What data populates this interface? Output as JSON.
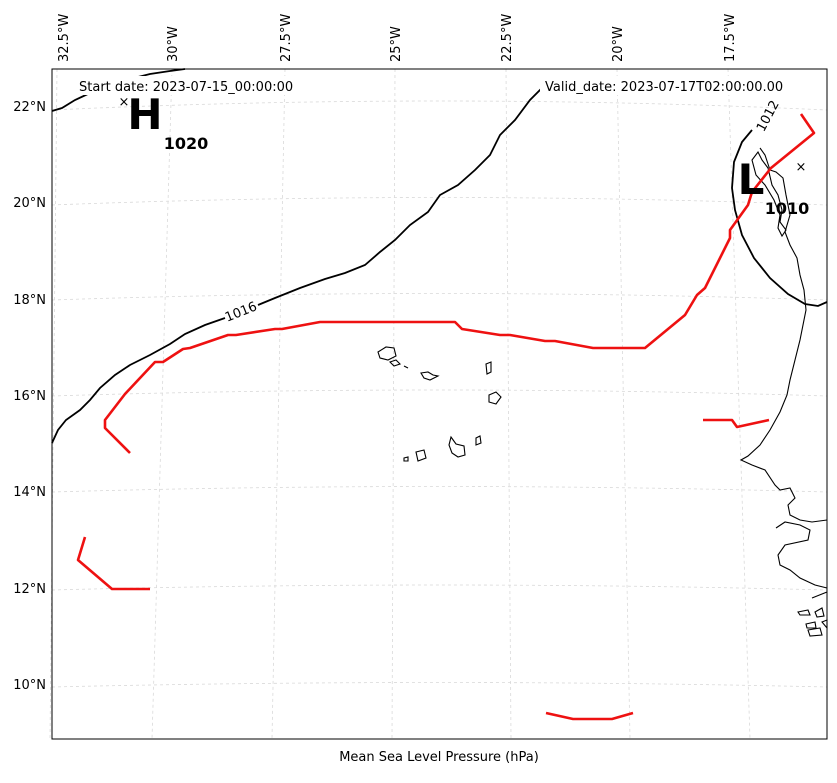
{
  "header": {
    "start_date": "Start date: 2023-07-15_00:00:00",
    "valid_date": "Valid_date: 2023-07-17T02:00:00.00"
  },
  "caption": "Mean Sea Level Pressure (hPa)",
  "longitude_labels": [
    "32.5°W",
    "30°W",
    "27.5°W",
    "25°W",
    "22.5°W",
    "20°W",
    "17.5°W"
  ],
  "latitude_labels": [
    "22°N",
    "20°N",
    "18°N",
    "16°N",
    "14°N",
    "12°N",
    "10°N"
  ],
  "centers": {
    "high": {
      "symbol": "H",
      "value": "1020",
      "marker": "×"
    },
    "low": {
      "symbol": "L",
      "value": "1010",
      "marker": "×"
    }
  },
  "contour_labels": [
    "1016",
    "1012"
  ],
  "colors": {
    "isobar": "#000000",
    "front": "#ee1111",
    "grid": "#d9d9d9",
    "coast": "#000000"
  }
}
